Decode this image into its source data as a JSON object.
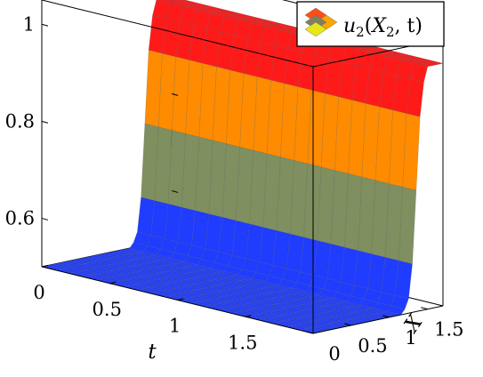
{
  "chart_data": {
    "type": "surface3d",
    "title": "",
    "xlabel": "t",
    "ylabel": "X",
    "zlabel": "",
    "xlim": [
      0,
      2
    ],
    "ylim": [
      0,
      1.7
    ],
    "zlim": [
      0.5,
      1.05
    ],
    "x_ticks": [
      {
        "value": 0,
        "label": "0"
      },
      {
        "value": 0.5,
        "label": "0.5"
      },
      {
        "value": 1,
        "label": "1"
      },
      {
        "value": 1.5,
        "label": "1.5"
      }
    ],
    "y_ticks": [
      {
        "value": 0,
        "label": "0"
      },
      {
        "value": 0.5,
        "label": "0.5"
      },
      {
        "value": 1,
        "label": "1"
      },
      {
        "value": 1.5,
        "label": "1.5"
      }
    ],
    "z_ticks": [
      {
        "value": 0.6,
        "label": "0.6"
      },
      {
        "value": 0.8,
        "label": "0.8"
      },
      {
        "value": 1,
        "label": "1"
      }
    ],
    "surface": {
      "t_values": [
        0,
        0.1,
        0.2,
        0.3,
        0.4,
        0.5,
        0.6,
        0.7,
        0.8,
        0.9,
        1.0,
        1.1,
        1.2,
        1.3,
        1.4,
        1.5,
        1.6,
        1.7,
        1.8,
        1.9,
        2.0
      ],
      "x_values": [
        0,
        0.05,
        0.1,
        0.15,
        0.2,
        0.25,
        0.3,
        0.35,
        0.4,
        0.45,
        0.5,
        0.55,
        0.6,
        0.65,
        0.7,
        0.75,
        0.8,
        0.85,
        0.9,
        0.95,
        1.0,
        1.05,
        1.1,
        1.15,
        1.2,
        1.25,
        1.3,
        1.35,
        1.4,
        1.45,
        1.5,
        1.55,
        1.6,
        1.65,
        1.7
      ],
      "u2_profile_over_X": [
        0.5,
        0.5,
        0.5,
        0.5,
        0.5,
        0.5,
        0.5,
        0.5,
        0.5,
        0.5,
        0.5,
        0.5,
        0.5,
        0.5,
        0.5,
        0.5,
        0.5,
        0.5,
        0.5,
        0.5,
        0.5,
        0.5,
        0.5,
        0.5,
        0.51,
        0.53,
        0.6,
        0.75,
        0.9,
        0.97,
        1.0,
        1.0,
        1.0,
        1.0,
        1.0
      ],
      "constant_in_t": true
    },
    "colormap": [
      "#1f3cff",
      "#7f8f5f",
      "#f2f21a",
      "#ff8c00",
      "#ff1a1a"
    ],
    "grid": false,
    "legend_position": "top-right",
    "series": [
      {
        "name": "u_2(X_2, t)",
        "legend_colors": [
          "#ff4d1a",
          "#ffa500",
          "#808060",
          "#e6e619"
        ]
      }
    ]
  },
  "legend": {
    "label_main": "u",
    "label_sub": "2",
    "label_args_open": "(",
    "label_arg1": "X",
    "label_arg1_sub": "2",
    "label_args_rest": ", t)"
  }
}
